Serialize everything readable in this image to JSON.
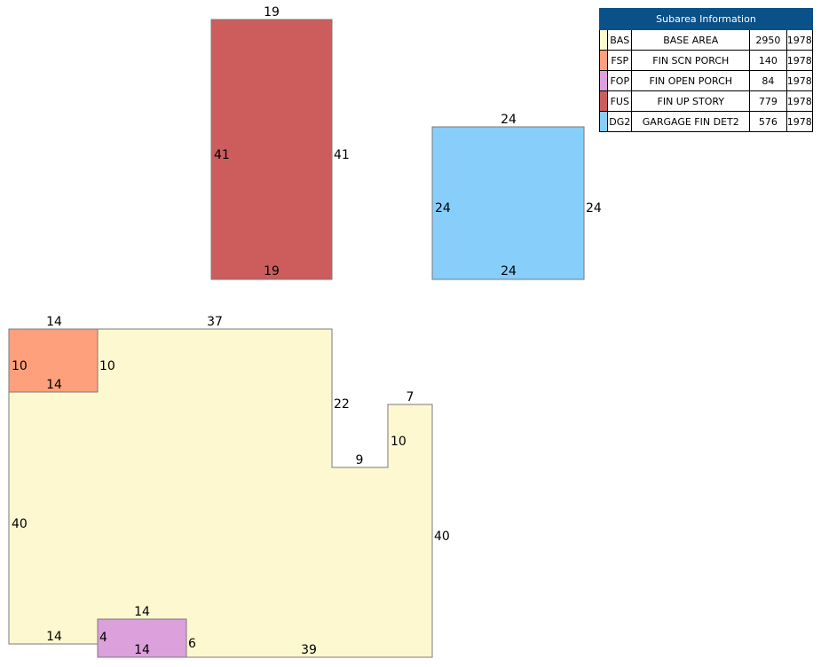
{
  "legend": {
    "title": "Subarea Information",
    "rows": [
      {
        "code": "BAS",
        "desc": "BASE AREA",
        "area": "2950",
        "year": "1978",
        "color": "#fdf8d0"
      },
      {
        "code": "FSP",
        "desc": "FIN SCN PORCH",
        "area": "140",
        "year": "1978",
        "color": "#fea07c"
      },
      {
        "code": "FOP",
        "desc": "FIN OPEN PORCH",
        "area": "84",
        "year": "1978",
        "color": "#dca0dc"
      },
      {
        "code": "FUS",
        "desc": "FIN UP STORY",
        "area": "779",
        "year": "1978",
        "color": "#cd5c5c"
      },
      {
        "code": "DG2",
        "desc": "GARGAGE FIN DET2",
        "area": "576",
        "year": "1978",
        "color": "#87cefa"
      }
    ]
  },
  "fus_dims": {
    "top": "19",
    "left": "41",
    "right": "41",
    "bottom": "19"
  },
  "dg2_dims": {
    "top": "24",
    "left": "24",
    "right": "24",
    "bottom": "24"
  },
  "bas_dims": {
    "top_left": "14",
    "top": "37",
    "notch_left": "22",
    "notch_bottom": "9",
    "notch_right": "10",
    "notch_top": "7",
    "right": "40",
    "left": "40",
    "bottom_left": "14",
    "bottom": "39"
  },
  "fsp_dims": {
    "left": "10",
    "right": "10",
    "bottom": "14"
  },
  "fop_dims": {
    "top": "14",
    "left": "4",
    "right": "6",
    "bottom": "14"
  }
}
